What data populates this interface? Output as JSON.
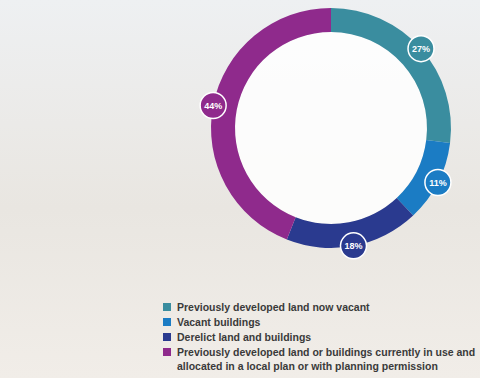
{
  "chart_data": {
    "type": "donut",
    "categories": [
      "Previously developed land now vacant",
      "Vacant buildings",
      "Derelict land and buildings",
      "Previously developed land or buildings currently in use and allocated in a local plan or with planning permission"
    ],
    "values": [
      27,
      11,
      18,
      44
    ],
    "value_labels": [
      "27%",
      "11%",
      "18%",
      "44%"
    ],
    "colors": [
      "#3a8d9f",
      "#1b7cc4",
      "#2a3a8f",
      "#8f2a8c"
    ],
    "data_labels": true,
    "legend": "bottom"
  }
}
